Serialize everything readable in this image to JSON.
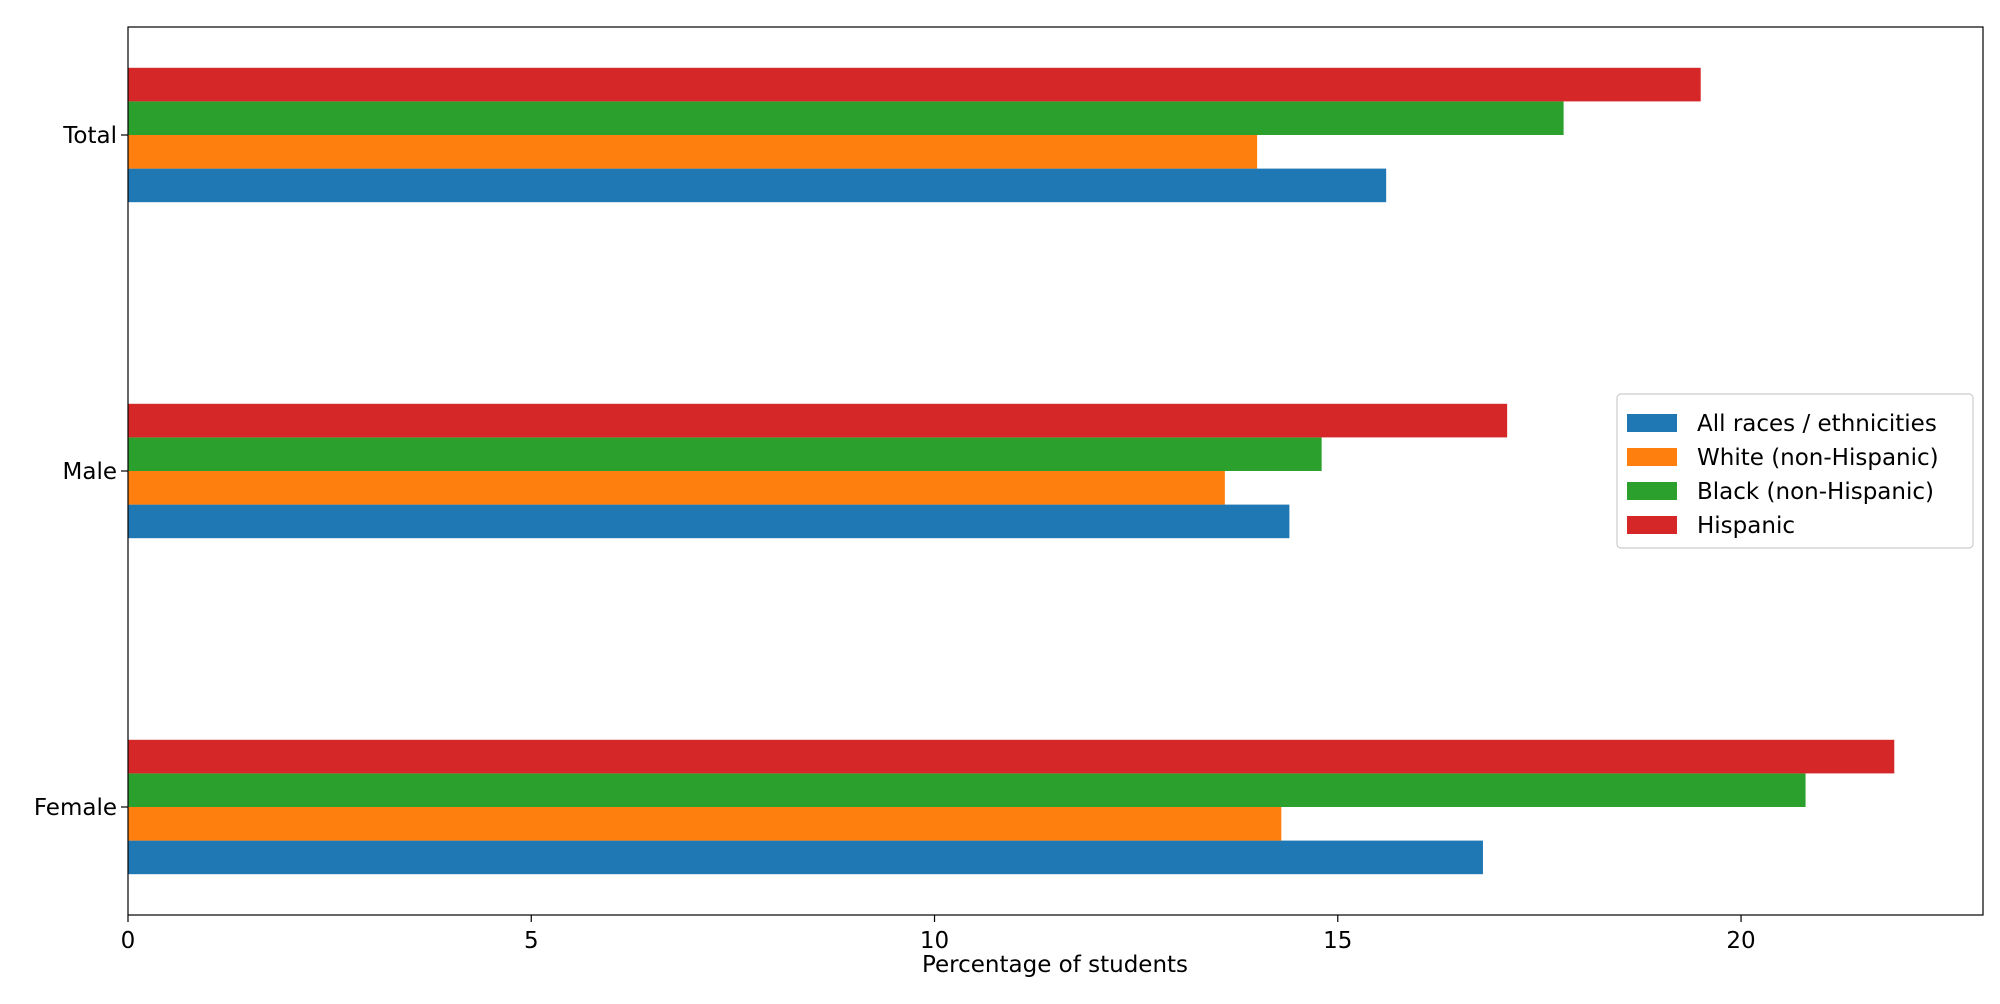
{
  "chart_data": {
    "type": "bar",
    "orientation": "horizontal",
    "categories": [
      "Total",
      "Male",
      "Female"
    ],
    "series": [
      {
        "name": "All races / ethnicities",
        "color": "#1f77b4",
        "values": [
          15.6,
          14.4,
          16.8
        ]
      },
      {
        "name": "White (non-Hispanic)",
        "color": "#ff7f0e",
        "values": [
          14.0,
          13.6,
          14.3
        ]
      },
      {
        "name": "Black (non-Hispanic)",
        "color": "#2ca02c",
        "values": [
          17.8,
          14.8,
          20.8
        ]
      },
      {
        "name": "Hispanic",
        "color": "#d62728",
        "values": [
          19.5,
          17.1,
          21.9
        ]
      }
    ],
    "title": "",
    "xlabel": "Percentage of students",
    "ylabel": "",
    "xlim": [
      0,
      23
    ],
    "xticks": [
      0,
      5,
      10,
      15,
      20
    ],
    "grid": false,
    "legend_position": "center-right"
  }
}
